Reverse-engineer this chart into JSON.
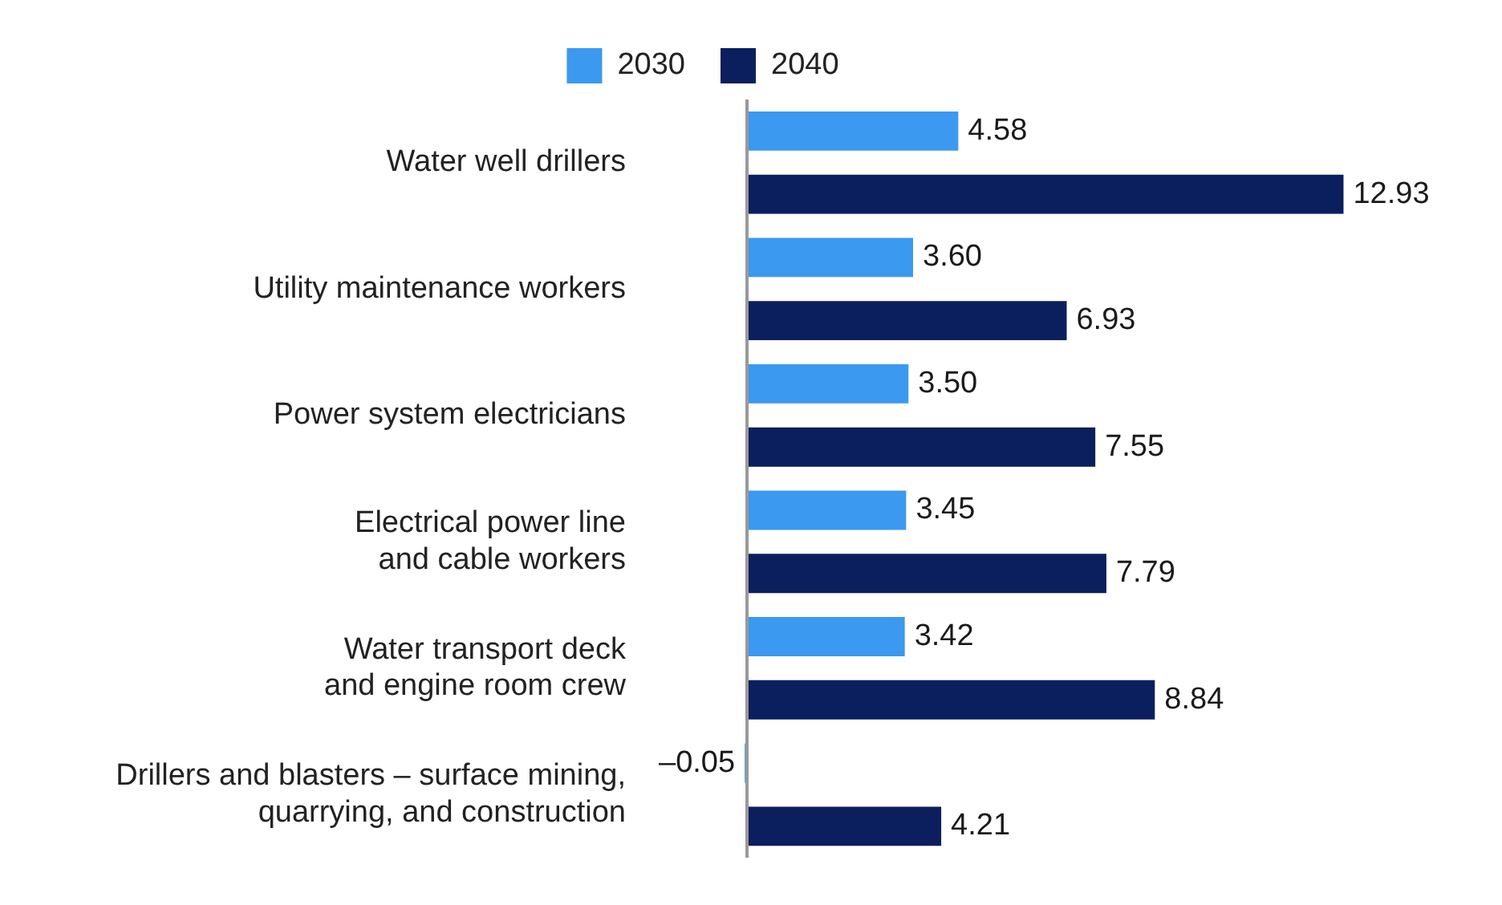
{
  "chart_data": {
    "type": "bar",
    "orientation": "horizontal",
    "categories": [
      "Water well drillers",
      "Utility maintenance workers",
      "Power system electricians",
      "Electrical power line\nand cable workers",
      "Water transport deck\nand engine room crew",
      "Drillers and blasters – surface mining,\nquarrying, and construction"
    ],
    "series": [
      {
        "name": "2030",
        "color": "#3b99f0",
        "values": [
          4.58,
          3.6,
          3.5,
          3.45,
          3.42,
          -0.05
        ],
        "value_labels": [
          "4.58",
          "3.60",
          "3.50",
          "3.45",
          "3.42",
          "–0.05"
        ]
      },
      {
        "name": "2040",
        "color": "#0b1f5e",
        "values": [
          12.93,
          6.93,
          7.55,
          7.79,
          8.84,
          4.21
        ],
        "value_labels": [
          "12.93",
          "6.93",
          "7.55",
          "7.79",
          "8.84",
          "4.21"
        ]
      }
    ],
    "legend": "top",
    "grid": false,
    "tick_labels": "y"
  }
}
